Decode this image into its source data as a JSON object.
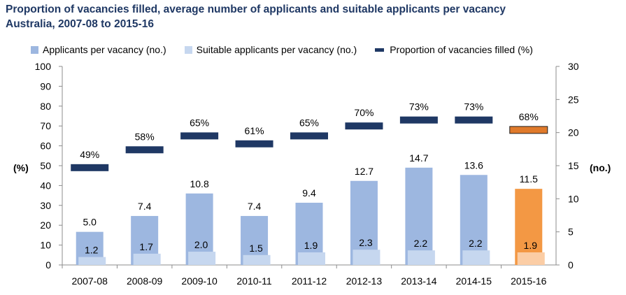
{
  "title": {
    "line1": "Proportion of vacancies filled, average number of applicants and suitable applicants per vacancy",
    "line2": "Australia, 2007-08 to 2015-16"
  },
  "legend": {
    "applicants": "Applicants per vacancy (no.)",
    "suitable": "Suitable applicants per vacancy (no.)",
    "proportion": "Proportion of vacancies filled (%)"
  },
  "colors": {
    "applicants": "#9db7e0",
    "suitable": "#c6d7ef",
    "proportion": "#1f3864",
    "highlight_applicants": "#f39844",
    "highlight_suitable": "#fbcda5",
    "highlight_proportion": "#e07a2b",
    "title": "#1f3864"
  },
  "chart_data": {
    "type": "bar",
    "title": "Proportion of vacancies filled, average number of applicants and suitable applicants per vacancy Australia, 2007-08 to 2015-16",
    "categories": [
      "2007-08",
      "2008-09",
      "2009-10",
      "2010-11",
      "2011-12",
      "2012-13",
      "2013-14",
      "2014-15",
      "2015-16"
    ],
    "series": [
      {
        "name": "Applicants per vacancy (no.)",
        "axis": "right",
        "values": [
          5.0,
          7.4,
          10.8,
          7.4,
          9.4,
          12.7,
          14.7,
          13.6,
          11.5
        ],
        "labels": [
          "5.0",
          "7.4",
          "10.8",
          "7.4",
          "9.4",
          "12.7",
          "14.7",
          "13.6",
          "11.5"
        ]
      },
      {
        "name": "Suitable applicants per vacancy (no.)",
        "axis": "right",
        "values": [
          1.2,
          1.7,
          2.0,
          1.5,
          1.9,
          2.3,
          2.2,
          2.2,
          1.9
        ],
        "labels": [
          "1.2",
          "1.7",
          "2.0",
          "1.5",
          "1.9",
          "2.3",
          "2.2",
          "2.2",
          "1.9"
        ]
      },
      {
        "name": "Proportion of vacancies filled (%)",
        "axis": "left",
        "values": [
          49,
          58,
          65,
          61,
          65,
          70,
          73,
          73,
          68
        ],
        "labels": [
          "49%",
          "58%",
          "65%",
          "61%",
          "65%",
          "70%",
          "73%",
          "73%",
          "68%"
        ]
      }
    ],
    "highlight_category": "2015-16",
    "y_left": {
      "label": "(%)",
      "min": 0,
      "max": 100,
      "ticks": [
        0,
        10,
        20,
        30,
        40,
        50,
        60,
        70,
        80,
        90,
        100
      ]
    },
    "y_right": {
      "label": "(no.)",
      "min": 0,
      "max": 30,
      "ticks": [
        0,
        5,
        10,
        15,
        20,
        25,
        30
      ]
    },
    "grid": false,
    "legend_position": "top"
  }
}
